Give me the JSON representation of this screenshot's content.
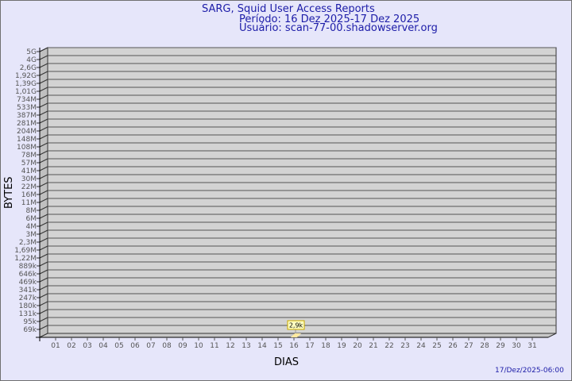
{
  "chart_data": {
    "type": "bar",
    "title": "SARG, Squid User Access Reports",
    "subtitle": [
      "Período: 16 Dez 2025-17 Dez 2025",
      "Usuário: scan-77-00.shadowserver.org"
    ],
    "xlabel": "DIAS",
    "ylabel": "BYTES",
    "y_scale": "log",
    "y_tick_labels": [
      "5G",
      "4G",
      "2,6G",
      "1,92G",
      "1,39G",
      "1,01G",
      "734M",
      "533M",
      "387M",
      "281M",
      "204M",
      "148M",
      "108M",
      "78M",
      "57M",
      "41M",
      "30M",
      "22M",
      "16M",
      "11M",
      "8M",
      "6M",
      "4M",
      "3M",
      "2,3M",
      "1,69M",
      "1,22M",
      "889k",
      "646k",
      "469k",
      "341k",
      "247k",
      "180k",
      "131k",
      "95k",
      "69k"
    ],
    "categories": [
      "01",
      "02",
      "03",
      "04",
      "05",
      "06",
      "07",
      "08",
      "09",
      "10",
      "11",
      "12",
      "13",
      "14",
      "15",
      "16",
      "17",
      "18",
      "19",
      "20",
      "21",
      "22",
      "23",
      "24",
      "25",
      "26",
      "27",
      "28",
      "29",
      "30",
      "31"
    ],
    "series": [
      {
        "points": [
          {
            "x": "16",
            "value": 2900,
            "label": "2,9k"
          }
        ]
      }
    ],
    "grid": true,
    "footer": "17/Dez/2025-06:00",
    "colors": {
      "background": "#e6e6fa",
      "plot": "#d3d3d3",
      "bar": "#ffe9a0",
      "title": "#1c1ca8"
    }
  }
}
